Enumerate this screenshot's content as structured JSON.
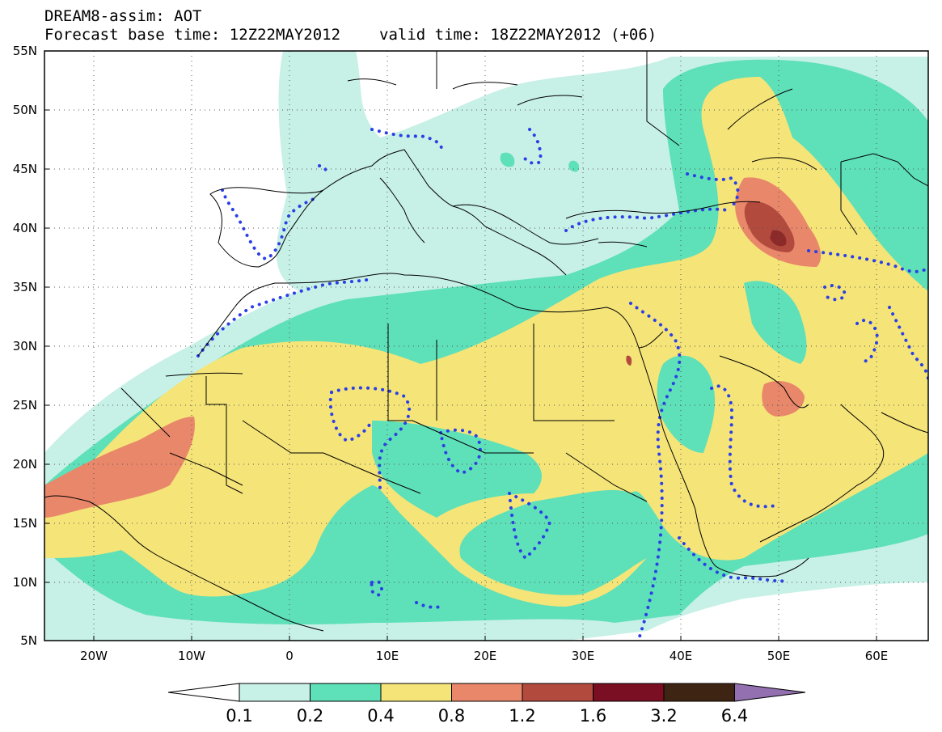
{
  "title": {
    "line1": "DREAM8-assim: AOT",
    "line2_left": "Forecast base time: 12Z22MAY2012",
    "line2_right": "valid time: 18Z22MAY2012 (+06)"
  },
  "map": {
    "lon_range": [
      -25,
      65
    ],
    "lat_range": [
      5,
      55
    ],
    "lat_ticks": [
      "55N",
      "50N",
      "45N",
      "40N",
      "35N",
      "30N",
      "25N",
      "20N",
      "15N",
      "10N",
      "5N"
    ],
    "lon_ticks": [
      "20W",
      "10W",
      "0",
      "10E",
      "20E",
      "30E",
      "40E",
      "50E",
      "60E"
    ],
    "grid": "dotted"
  },
  "colorbar": {
    "labels": [
      "0.1",
      "0.2",
      "0.4",
      "0.8",
      "1.2",
      "1.6",
      "3.2",
      "6.4"
    ],
    "colors": [
      "#c7f0e6",
      "#5ee0b8",
      "#f5e478",
      "#e8876a",
      "#b34a3e",
      "#7a0e22",
      "#3e2412",
      "#9370b0"
    ],
    "under_color": "#ffffff"
  },
  "contour_color": "#2a3fe6"
}
